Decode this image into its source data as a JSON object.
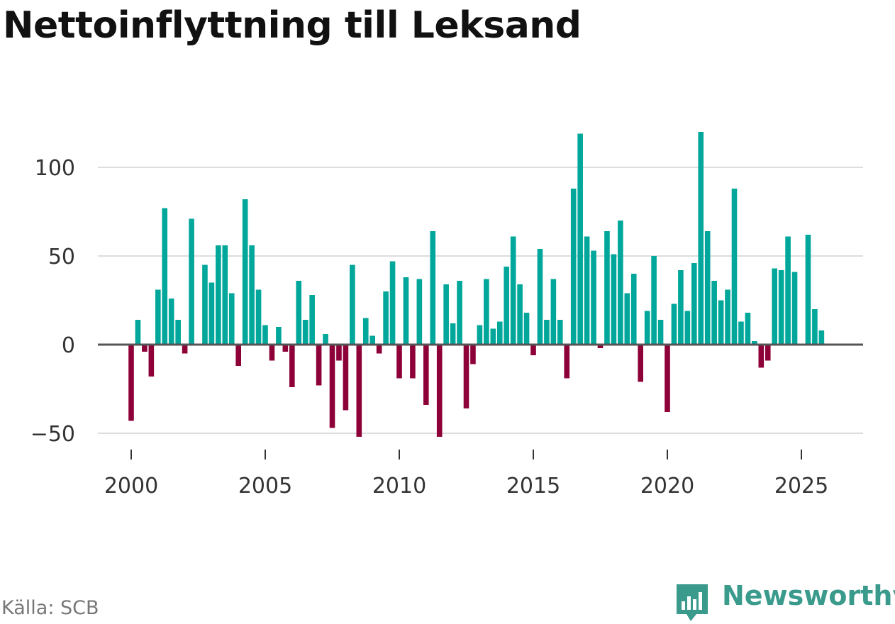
{
  "title": "Nettoinflyttning till Leksand",
  "source": "Källa: SCB",
  "brand": {
    "name": "Newsworthy",
    "icon": "bar-chart-logo-icon"
  },
  "colors": {
    "positive": "#00a79a",
    "negative": "#8d0038",
    "grid": "#dddddd",
    "zero_line": "#555555",
    "brand": "#3a9a8c"
  },
  "chart_data": {
    "type": "bar",
    "title": "Nettoinflyttning till Leksand",
    "xlabel": "",
    "ylabel": "",
    "x_start": 2000.0,
    "x_step": 0.25,
    "xlim": [
      1999.4,
      2027.4
    ],
    "ylim": [
      -56,
      120
    ],
    "yticks": [
      -50,
      0,
      50,
      100
    ],
    "ytick_labels": [
      "−50",
      "0",
      "50",
      "100"
    ],
    "xticks": [
      2000,
      2005,
      2010,
      2015,
      2020,
      2025
    ],
    "xtick_labels": [
      "2000",
      "2005",
      "2010",
      "2015",
      "2020",
      "2025"
    ],
    "values": [
      -43,
      14,
      -4,
      -18,
      31,
      77,
      26,
      14,
      -5,
      71,
      0,
      45,
      35,
      56,
      56,
      29,
      -12,
      82,
      56,
      31,
      11,
      -9,
      10,
      -4,
      -24,
      36,
      14,
      28,
      -23,
      6,
      -47,
      -9,
      -37,
      45,
      -52,
      15,
      5,
      -5,
      30,
      47,
      -19,
      38,
      -19,
      37,
      -34,
      64,
      -52,
      34,
      12,
      36,
      -36,
      -11,
      11,
      37,
      9,
      13,
      44,
      61,
      34,
      18,
      -6,
      54,
      14,
      37,
      14,
      -19,
      88,
      119,
      61,
      53,
      -2,
      64,
      51,
      70,
      29,
      40,
      -21,
      19,
      50,
      14,
      -38,
      23,
      42,
      19,
      46,
      120,
      64,
      36,
      25,
      31,
      88,
      13,
      18,
      2,
      -13,
      -9,
      43,
      42,
      61,
      41,
      0,
      62,
      20,
      8
    ]
  }
}
